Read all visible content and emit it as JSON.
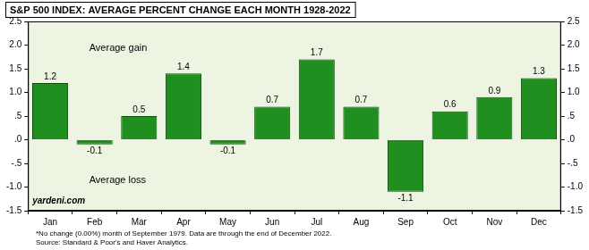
{
  "chart_data": {
    "type": "bar",
    "title": "S&P 500 INDEX: AVERAGE PERCENT CHANGE EACH MONTH 1928-2022",
    "categories": [
      "Jan",
      "Feb",
      "Mar",
      "Apr",
      "May",
      "Jun",
      "Jul",
      "Aug",
      "Sep",
      "Oct",
      "Nov",
      "Dec"
    ],
    "values": [
      1.2,
      -0.1,
      0.5,
      1.4,
      -0.1,
      0.7,
      1.7,
      0.7,
      -1.1,
      0.6,
      0.9,
      1.3
    ],
    "color": "#1f8f1f",
    "ylim": [
      -1.5,
      2.5
    ],
    "yticks": [
      {
        "value": -1.5,
        "label": "-1.5"
      },
      {
        "value": -1,
        "label": "-1.0"
      },
      {
        "value": -0.5,
        "label": "-.5"
      },
      {
        "value": 0,
        "label": ".0"
      },
      {
        "value": 0.5,
        "label": ".5"
      },
      {
        "value": 1,
        "label": "1.0"
      },
      {
        "value": 1.5,
        "label": "1.5"
      },
      {
        "value": 2,
        "label": "2.0"
      },
      {
        "value": 2.5,
        "label": "2.5"
      }
    ],
    "y2lim": [
      -1.5,
      2.5
    ],
    "y2ticks": [
      {
        "value": -1.5,
        "label": "-1.5"
      },
      {
        "value": -1,
        "label": "-1.0"
      },
      {
        "value": -0.5,
        "label": "-.5"
      },
      {
        "value": 0,
        "label": ".0"
      },
      {
        "value": 0.5,
        "label": ".5"
      },
      {
        "value": 1,
        "label": "1.0"
      },
      {
        "value": 1.5,
        "label": "1.5"
      },
      {
        "value": 2,
        "label": "2.0"
      },
      {
        "value": 2.5,
        "label": "2.5"
      }
    ],
    "grid": false,
    "data_labels": true,
    "annotations": [
      "Average gain",
      "Average loss",
      "yardeni.com"
    ],
    "footnotes": [
      "*No change (0.00%) month of September 1979. Data are through the end of December 2022.",
      "Source: Standard & Poor's and Haver Analytics."
    ]
  }
}
